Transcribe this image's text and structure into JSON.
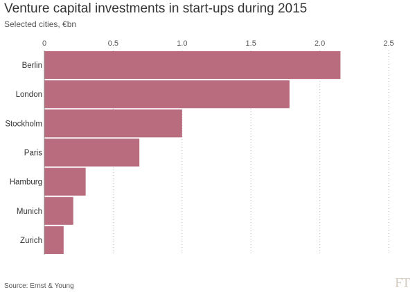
{
  "header": {
    "title": "Venture capital investments in start-ups during 2015",
    "subtitle": "Selected cities, €bn"
  },
  "footer": {
    "source": "Source: Ernst & Young",
    "logo": "FT"
  },
  "colors": {
    "bar": "#b96c7e",
    "grid": "#bbbbbb",
    "text": "#333333"
  },
  "chart_data": {
    "type": "bar",
    "orientation": "horizontal",
    "title": "Venture capital investments in start-ups during 2015",
    "subtitle": "Selected cities, €bn",
    "categories": [
      "Berlin",
      "London",
      "Stockholm",
      "Paris",
      "Hamburg",
      "Munich",
      "Zurich"
    ],
    "values": [
      2.15,
      1.78,
      1.0,
      0.69,
      0.3,
      0.21,
      0.14
    ],
    "xlim": [
      0,
      2.5
    ],
    "ticks": [
      0,
      0.5,
      1.0,
      1.5,
      2.0,
      2.5
    ],
    "tick_labels": [
      "0",
      "0.5",
      "1.0",
      "1.5",
      "2.0",
      "2.5"
    ],
    "tick_position": "top",
    "grid": true,
    "legend": "none"
  }
}
